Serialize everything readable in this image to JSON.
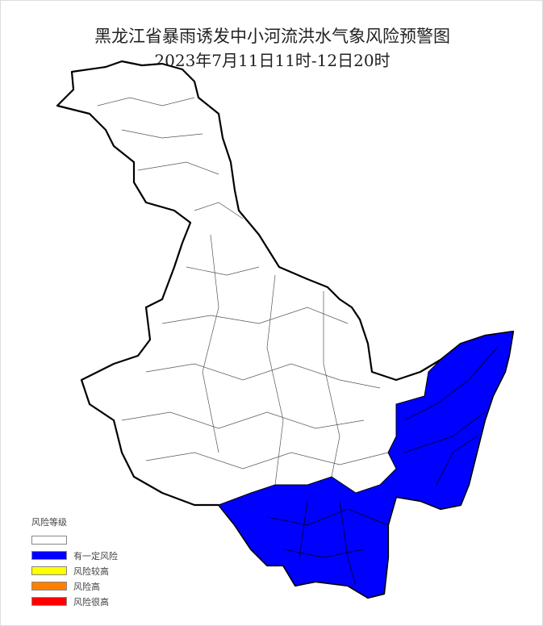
{
  "title": "黑龙江省暴雨诱发中小河流洪水气象风险预警图",
  "subtitle": "2023年7月11日11时-12日20时",
  "map": {
    "region": "黑龙江省",
    "highlighted_level": "有一定风险",
    "highlight_color": "#0000FF",
    "area_location": "southeast"
  },
  "legend": {
    "title": "风险等级",
    "items": [
      {
        "label": "",
        "color": "#FFFFFF"
      },
      {
        "label": "有一定风险",
        "color": "#0000FF"
      },
      {
        "label": "风险较高",
        "color": "#FFFF00"
      },
      {
        "label": "风险高",
        "color": "#FF8000"
      },
      {
        "label": "风险很高",
        "color": "#FF0000"
      }
    ]
  }
}
